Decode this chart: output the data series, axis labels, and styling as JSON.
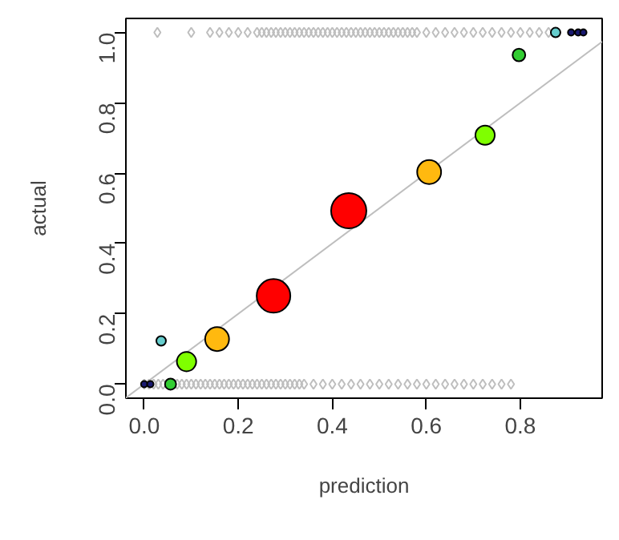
{
  "chart_data": {
    "type": "bubble",
    "xlabel": "prediction",
    "ylabel": "actual",
    "xlim": [
      -0.039,
      0.974
    ],
    "ylim": [
      -0.04,
      1.04
    ],
    "xticks": [
      {
        "value": 0,
        "label": "0.0"
      },
      0.2,
      0.4,
      0.6,
      0.8
    ],
    "yticks": [
      {
        "value": 0,
        "label": "0.0"
      },
      0.2,
      0.4,
      0.6,
      0.8,
      {
        "value": 1,
        "label": "1.0"
      }
    ],
    "grid": false,
    "series": [
      {
        "type": "scatter",
        "marker": "diamond",
        "color": "#bebebe",
        "x": [
          0.0,
          0.01,
          0.02,
          0.03,
          0.04,
          0.07,
          0.08,
          0.09,
          0.1,
          0.11,
          0.12,
          0.13,
          0.14,
          0.15,
          0.16,
          0.17,
          0.18,
          0.19,
          0.2,
          0.21,
          0.22,
          0.23,
          0.24,
          0.25,
          0.26,
          0.27,
          0.28,
          0.29,
          0.3,
          0.31,
          0.32,
          0.33,
          0.34,
          0.36,
          0.38,
          0.4,
          0.42,
          0.44,
          0.46,
          0.48,
          0.5,
          0.52,
          0.54,
          0.56,
          0.58,
          0.6,
          0.62,
          0.64,
          0.66,
          0.68,
          0.7,
          0.72,
          0.74,
          0.76,
          0.78
        ],
        "values": [
          0,
          0,
          0,
          0,
          0,
          0,
          0,
          0,
          0,
          0,
          0,
          0,
          0,
          0,
          0,
          0,
          0,
          0,
          0,
          0,
          0,
          0,
          0,
          0,
          0,
          0,
          0,
          0,
          0,
          0,
          0,
          0,
          0,
          0,
          0,
          0,
          0,
          0,
          0,
          0,
          0,
          0,
          0,
          0,
          0,
          0,
          0,
          0,
          0,
          0,
          0,
          0,
          0,
          0,
          0
        ]
      },
      {
        "type": "scatter",
        "marker": "diamond",
        "color": "#bebebe",
        "x": [
          0.028,
          0.1,
          0.14,
          0.16,
          0.18,
          0.2,
          0.22,
          0.24,
          0.25,
          0.26,
          0.27,
          0.28,
          0.29,
          0.3,
          0.31,
          0.32,
          0.33,
          0.34,
          0.35,
          0.36,
          0.37,
          0.38,
          0.39,
          0.4,
          0.41,
          0.42,
          0.43,
          0.44,
          0.45,
          0.46,
          0.47,
          0.48,
          0.49,
          0.5,
          0.51,
          0.52,
          0.53,
          0.54,
          0.55,
          0.56,
          0.57,
          0.58,
          0.6,
          0.62,
          0.64,
          0.66,
          0.68,
          0.7,
          0.72,
          0.74,
          0.76,
          0.78,
          0.8,
          0.82,
          0.84,
          0.86
        ],
        "values": [
          1,
          1,
          1,
          1,
          1,
          1,
          1,
          1,
          1,
          1,
          1,
          1,
          1,
          1,
          1,
          1,
          1,
          1,
          1,
          1,
          1,
          1,
          1,
          1,
          1,
          1,
          1,
          1,
          1,
          1,
          1,
          1,
          1,
          1,
          1,
          1,
          1,
          1,
          1,
          1,
          1,
          1,
          1,
          1,
          1,
          1,
          1,
          1,
          1,
          1,
          1,
          1,
          1,
          1,
          1,
          1
        ]
      },
      {
        "type": "line",
        "color": "#bebebe",
        "x": [
          -0.039,
          0.974
        ],
        "values": [
          -0.039,
          0.974
        ]
      },
      {
        "x": [
          0.435,
          0.275,
          0.155,
          0.606,
          0.09,
          0.725,
          0.797,
          0.056,
          0.036,
          0.875,
          0.0,
          0.013,
          0.908,
          0.923,
          0.934
        ],
        "values": [
          0.493,
          0.251,
          0.128,
          0.603,
          0.064,
          0.708,
          0.936,
          0.0,
          0.123,
          1.0,
          0.0,
          0.0,
          1.0,
          1.0,
          1.0
        ],
        "sizes": [
          1,
          0.91,
          0.46,
          0.46,
          0.3,
          0.3,
          0.13,
          0.1,
          0.074,
          0.074,
          0.033,
          0.033,
          0.033,
          0.033,
          0.033
        ],
        "colors": [
          "#ff0000",
          "#ff0000",
          "#ffb90f",
          "#ffb90f",
          "#7fff00",
          "#7fff00",
          "#32cd32",
          "#32cd32",
          "#66cdcd",
          "#66cdcd",
          "#191970",
          "#191970",
          "#191970",
          "#191970",
          "#191970"
        ]
      }
    ]
  }
}
